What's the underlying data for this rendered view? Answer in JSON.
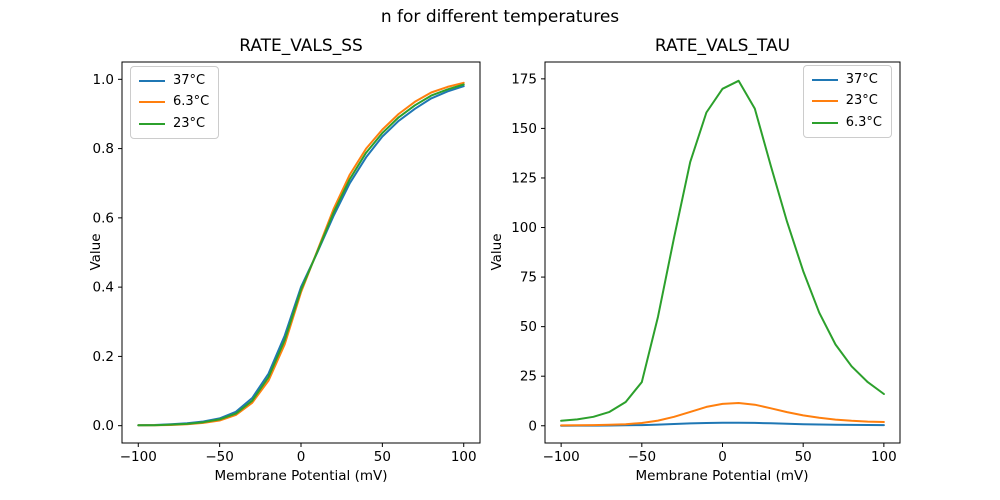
{
  "figure": {
    "suptitle": "n for different temperatures"
  },
  "colors": {
    "blue": "#1f77b4",
    "orange": "#ff7f0e",
    "green": "#2ca02c",
    "spine": "#000000",
    "text": "#000000",
    "legend_border": "#cccccc"
  },
  "chart_data": [
    {
      "type": "line",
      "title": "RATE_VALS_SS",
      "xlabel": "Membrane Potential (mV)",
      "ylabel": "Value",
      "xlim": [
        -110,
        110
      ],
      "ylim": [
        -0.05,
        1.05
      ],
      "xticks": [
        -100,
        -50,
        0,
        50,
        100
      ],
      "xtick_labels": [
        "−100",
        "−50",
        "0",
        "50",
        "100"
      ],
      "yticks": [
        0.0,
        0.2,
        0.4,
        0.6,
        0.8,
        1.0
      ],
      "ytick_labels": [
        "0.0",
        "0.2",
        "0.4",
        "0.6",
        "0.8",
        "1.0"
      ],
      "grid": false,
      "legend_position": "upper-left",
      "x": [
        -100,
        -90,
        -80,
        -70,
        -60,
        -50,
        -40,
        -30,
        -20,
        -10,
        0,
        10,
        20,
        30,
        40,
        50,
        60,
        70,
        80,
        90,
        100
      ],
      "series": [
        {
          "name": "37°C",
          "color": "#1f77b4",
          "values": [
            0.001,
            0.002,
            0.004,
            0.007,
            0.012,
            0.021,
            0.04,
            0.08,
            0.15,
            0.26,
            0.4,
            0.5,
            0.605,
            0.7,
            0.775,
            0.835,
            0.88,
            0.915,
            0.945,
            0.965,
            0.98
          ]
        },
        {
          "name": "6.3°C",
          "color": "#ff7f0e",
          "values": [
            0.001,
            0.001,
            0.002,
            0.004,
            0.008,
            0.015,
            0.031,
            0.066,
            0.13,
            0.235,
            0.385,
            0.505,
            0.625,
            0.725,
            0.8,
            0.855,
            0.9,
            0.935,
            0.962,
            0.978,
            0.99
          ]
        },
        {
          "name": "23°C",
          "color": "#2ca02c",
          "values": [
            0.001,
            0.0015,
            0.003,
            0.005,
            0.01,
            0.018,
            0.035,
            0.072,
            0.14,
            0.247,
            0.392,
            0.502,
            0.615,
            0.712,
            0.788,
            0.845,
            0.89,
            0.925,
            0.953,
            0.971,
            0.985
          ]
        }
      ]
    },
    {
      "type": "line",
      "title": "RATE_VALS_TAU",
      "xlabel": "Membrane Potential (mV)",
      "ylabel": "Value",
      "xlim": [
        -110,
        110
      ],
      "ylim": [
        -8.7,
        183.5
      ],
      "xticks": [
        -100,
        -50,
        0,
        50,
        100
      ],
      "xtick_labels": [
        "−100",
        "−50",
        "0",
        "50",
        "100"
      ],
      "yticks": [
        0,
        25,
        50,
        75,
        100,
        125,
        150,
        175
      ],
      "ytick_labels": [
        "0",
        "25",
        "50",
        "75",
        "100",
        "125",
        "150",
        "175"
      ],
      "grid": false,
      "legend_position": "upper-right",
      "x": [
        -100,
        -90,
        -80,
        -70,
        -60,
        -50,
        -40,
        -30,
        -20,
        -10,
        0,
        10,
        20,
        30,
        40,
        50,
        60,
        70,
        80,
        90,
        100
      ],
      "series": [
        {
          "name": "37°C",
          "color": "#1f77b4",
          "values": [
            0.05,
            0.07,
            0.1,
            0.15,
            0.22,
            0.35,
            0.6,
            0.9,
            1.2,
            1.4,
            1.5,
            1.55,
            1.45,
            1.25,
            1.0,
            0.78,
            0.62,
            0.5,
            0.42,
            0.36,
            0.32
          ]
        },
        {
          "name": "23°C",
          "color": "#ff7f0e",
          "values": [
            0.2,
            0.25,
            0.35,
            0.5,
            0.8,
            1.4,
            2.6,
            4.5,
            7.0,
            9.5,
            11.0,
            11.5,
            10.6,
            8.8,
            6.9,
            5.2,
            4.0,
            3.1,
            2.5,
            2.1,
            1.9
          ]
        },
        {
          "name": "6.3°C",
          "color": "#2ca02c",
          "values": [
            2.5,
            3.2,
            4.5,
            7,
            12,
            22,
            55,
            95,
            133,
            158,
            170,
            174,
            160,
            131,
            103,
            78,
            57,
            41,
            30,
            22,
            16
          ]
        }
      ]
    }
  ]
}
